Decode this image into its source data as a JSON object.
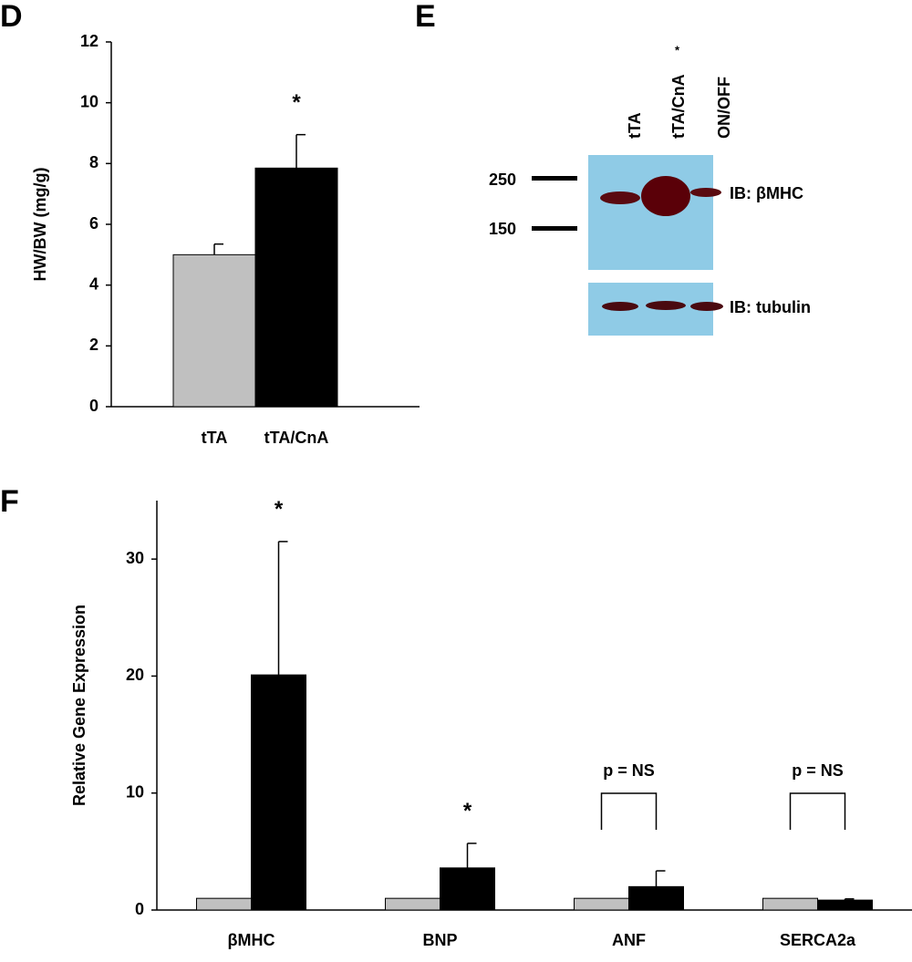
{
  "chart_data": [
    {
      "type": "bar",
      "label": "D",
      "ylabel": "HW/BW (mg/g)",
      "categories": [
        "tTA",
        "tTA/CnA"
      ],
      "series": [
        {
          "colors": [
            "#c0c0c0",
            "#000000"
          ],
          "values": [
            5.0,
            7.85
          ],
          "errors": [
            0.35,
            1.1
          ]
        }
      ],
      "ylim": [
        0,
        12
      ],
      "yticks": [
        0,
        2,
        4,
        6,
        8,
        10,
        12
      ],
      "annotations": [
        {
          "text": "*",
          "category": 1
        }
      ]
    },
    {
      "type": "bar",
      "label": "F",
      "ylabel": "Relative Gene Expression",
      "categories": [
        "βMHC",
        "BNP",
        "ANF",
        "SERCA2a"
      ],
      "series": [
        {
          "color": "#c0c0c0",
          "values": [
            1,
            1,
            1,
            1
          ]
        },
        {
          "color": "#000000",
          "values": [
            20.1,
            3.6,
            2.0,
            0.85
          ],
          "errors": [
            11.4,
            2.1,
            1.35,
            0.1
          ]
        }
      ],
      "ylim": [
        0,
        35
      ],
      "yticks": [
        0,
        10,
        20,
        30
      ],
      "annotations": [
        {
          "text": "*",
          "category": 0
        },
        {
          "text": "*",
          "category": 1
        },
        {
          "text": "p = NS",
          "category": 2,
          "bracket": true
        },
        {
          "text": "p = NS",
          "category": 3,
          "bracket": true
        }
      ]
    }
  ],
  "blot": {
    "label": "E",
    "lanes": [
      "tTA",
      "tTA/CnA",
      "ON/OFF"
    ],
    "lane_note": "*",
    "markers": [
      "250",
      "150"
    ],
    "probes": [
      "IB: βMHC",
      "IB: tubulin"
    ]
  }
}
